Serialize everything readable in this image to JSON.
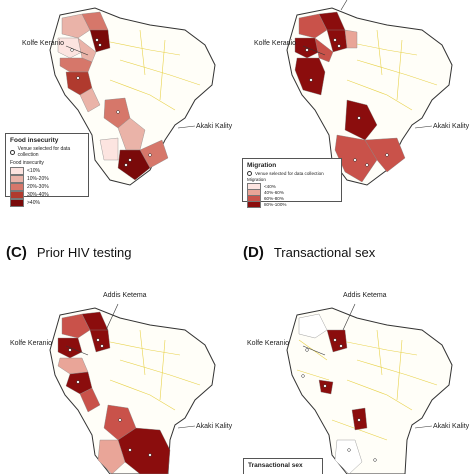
{
  "panels": {
    "A": {
      "letter": "",
      "title": "",
      "labels": {
        "kolfe": "Kolfe Keranio",
        "akaki": "Akaki Kality",
        "addis": ""
      },
      "legend": {
        "title": "Food insecurity",
        "venue": "Venue selected for data collection",
        "scale_title": "Food insecurity",
        "classes": [
          {
            "label": "<10%",
            "color": "#fce4e0"
          },
          {
            "label": "10%-20%",
            "color": "#eab3a8"
          },
          {
            "label": "20%-30%",
            "color": "#d6776a"
          },
          {
            "label": "30%-40%",
            "color": "#b03a2e"
          },
          {
            "label": ">40%",
            "color": "#7a0a0a"
          }
        ]
      }
    },
    "B": {
      "letter": "",
      "title": "",
      "labels": {
        "kolfe": "Kolfe Keranio",
        "akaki": "Akaki Kality",
        "addis": ""
      },
      "legend": {
        "title": "Migration",
        "venue": "Venue selected for data collection",
        "scale_title": "Migration",
        "classes": [
          {
            "label": "<40%",
            "color": "#fce4e0"
          },
          {
            "label": "40%-60%",
            "color": "#e9a598"
          },
          {
            "label": "60%-80%",
            "color": "#c9524a"
          },
          {
            "label": "80%-100%",
            "color": "#8b0d0d"
          }
        ]
      }
    },
    "C": {
      "letter": "(C)",
      "title": "Prior HIV testing",
      "labels": {
        "kolfe": "Kolfe Keranio",
        "akaki": "Akaki Kality",
        "addis": "Addis Ketema"
      }
    },
    "D": {
      "letter": "(D)",
      "title": "Transactional sex",
      "labels": {
        "kolfe": "Kolfe Keranio",
        "akaki": "Akaki Kality",
        "addis": "Addis Ketema"
      },
      "legend": {
        "title": "Transactional sex"
      }
    }
  }
}
